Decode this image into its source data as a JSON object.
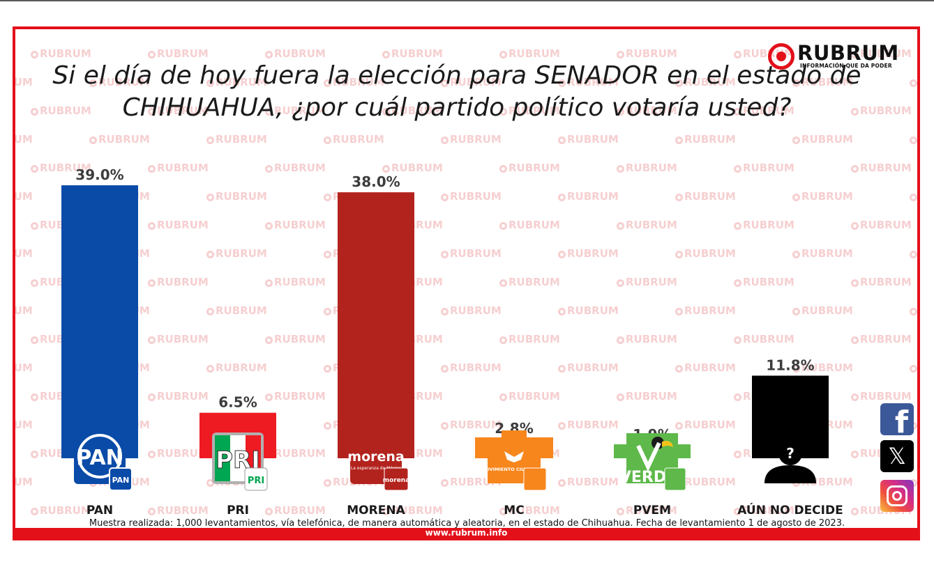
{
  "header": {
    "brand": "RUBRUM",
    "tagline": "INFORMACIÓN QUE DA PODER",
    "watermark_text": "RUBRUM"
  },
  "chart_data": {
    "type": "bar",
    "title_lines": [
      "Si el día de hoy fuera la elección para SENADOR en el estado de",
      "CHIHUAHUA, ¿por cuál partido político votaría usted?"
    ],
    "categories": [
      "PAN",
      "PRI",
      "MORENA",
      "MC",
      "PVEM",
      "AÚN NO DECIDE"
    ],
    "values": [
      39.0,
      6.5,
      38.0,
      2.8,
      1.9,
      11.8
    ],
    "value_labels": [
      "39.0%",
      "6.5%",
      "38.0%",
      "2.8%",
      "1.9%",
      "11.8%"
    ],
    "colors": [
      "#0a4ba8",
      "#ee1b23",
      "#b3231d",
      "#f7861d",
      "#5eb84a",
      "#000000"
    ],
    "ylim": [
      0,
      40
    ],
    "grid": false,
    "legend": "none",
    "logo_icons": [
      "pan-logo-icon",
      "pri-logo-icon",
      "morena-logo-icon",
      "mc-logo-icon",
      "pvem-logo-icon",
      "undecided-person-icon"
    ],
    "logo_texts": {
      "pan": "PAN",
      "pri": "PRI",
      "morena": "morena",
      "morena_sub": "La esperanza de México",
      "mc": "MOVIMIENTO CIUDADANO",
      "pvem": "VERDE",
      "undecided": "?"
    }
  },
  "footer": {
    "caption": "Muestra realizada: 1,000 levantamientos, vía telefónica, de manera automática y aleatoria, en el estado de Chihuahua. Fecha de levantamiento 1 de agosto de 2023.",
    "url": "www.rubrum.info"
  },
  "social": [
    "facebook-icon",
    "x-twitter-icon",
    "instagram-icon"
  ]
}
